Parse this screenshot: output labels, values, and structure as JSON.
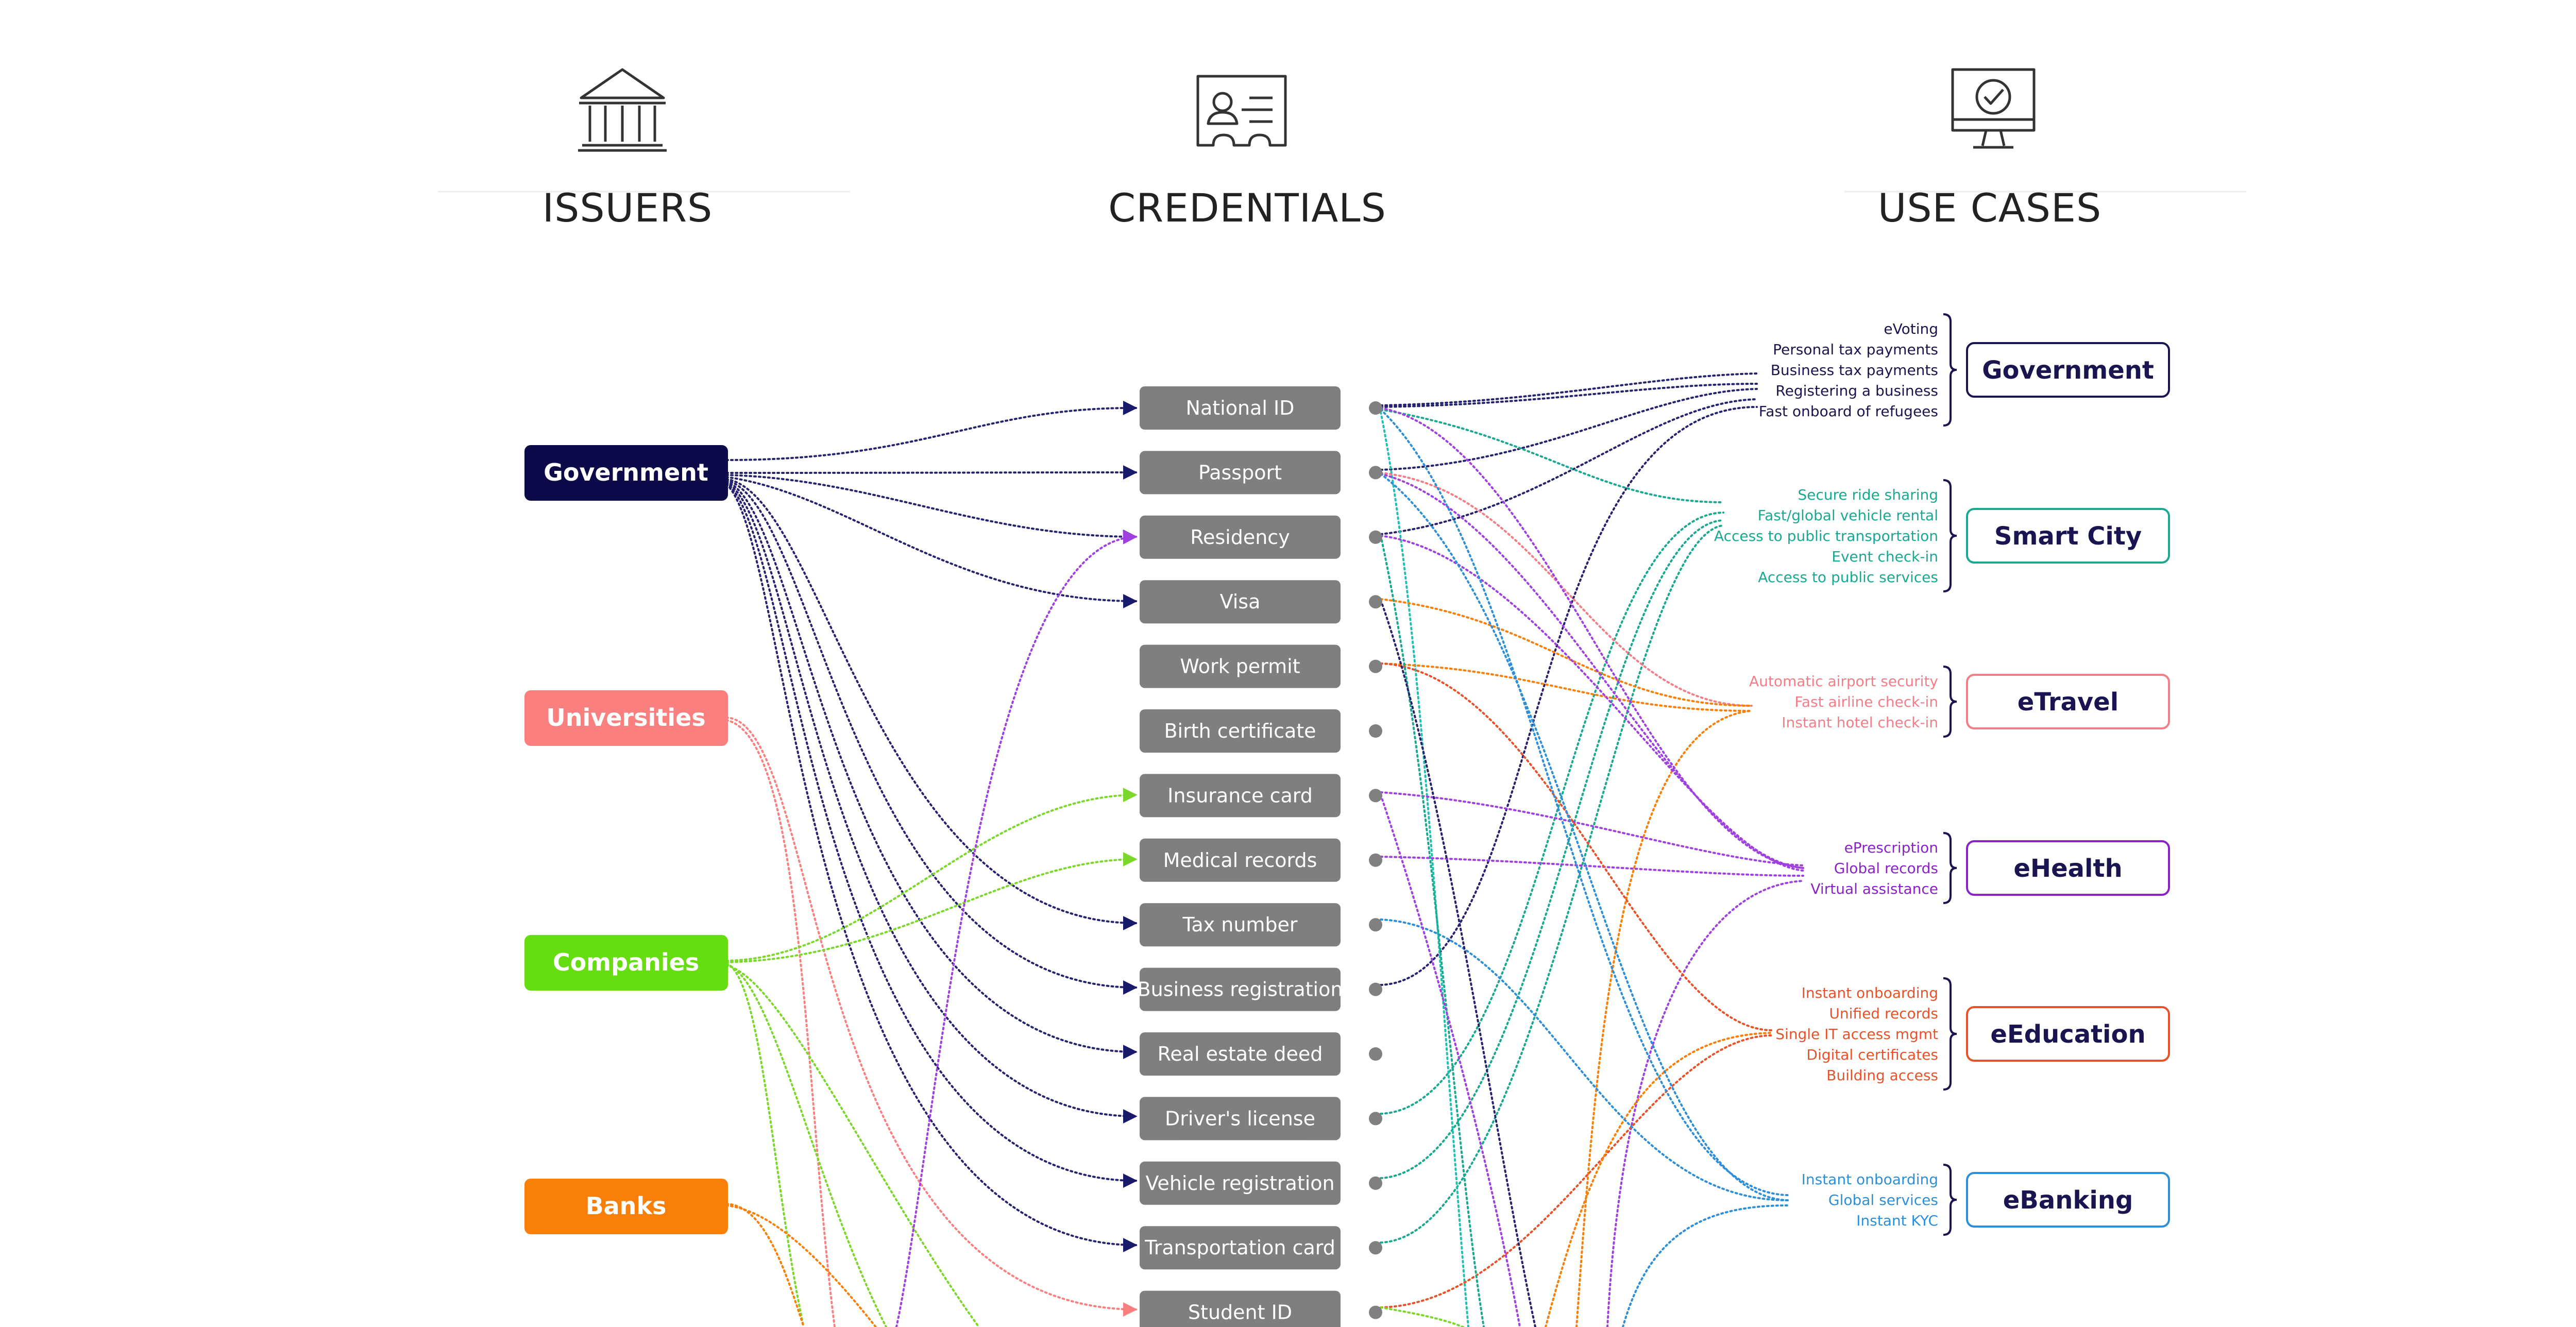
{
  "headers": {
    "issuers": "ISSUERS",
    "credentials": "CREDENTIALS",
    "use_cases": "USE CASES"
  },
  "header_icons": [
    "bank-building-icon",
    "id-card-icon",
    "monitor-checkmark-icon"
  ],
  "issuers": [
    {
      "label": "Government",
      "color": "#0d0a4a"
    },
    {
      "label": "Universities",
      "color": "#fa8080"
    },
    {
      "label": "Companies",
      "color": "#66dd11"
    },
    {
      "label": "Banks",
      "color": "#f77f0a"
    }
  ],
  "credentials": [
    "National ID",
    "Passport",
    "Residency",
    "Visa",
    "Work permit",
    "Birth certificate",
    "Insurance card",
    "Medical records",
    "Tax number",
    "Business registration",
    "Real estate deed",
    "Driver's license",
    "Vehicle registration",
    "Transportation card",
    "Student ID"
  ],
  "use_cases": [
    {
      "label": "Government",
      "color": "#1a1450",
      "items": [
        "eVoting",
        "Personal tax payments",
        "Business tax payments",
        "Registering a business",
        "Fast onboard of refugees"
      ]
    },
    {
      "label": "Smart City",
      "color": "#1aa890",
      "items": [
        "Secure ride sharing",
        "Fast/global vehicle rental",
        "Access to public transportation",
        "Event check-in",
        "Access to public services"
      ]
    },
    {
      "label": "eTravel",
      "color": "#f47d86",
      "items": [
        "Automatic airport security",
        "Fast airline check-in",
        "Instant hotel check-in"
      ]
    },
    {
      "label": "eHealth",
      "color": "#8a22c8",
      "items": [
        "ePrescription",
        "Global records",
        "Virtual assistance"
      ]
    },
    {
      "label": "eEducation",
      "color": "#e8522a",
      "items": [
        "Instant onboarding",
        "Unified records",
        "Single IT access mgmt",
        "Digital certificates",
        "Building access"
      ]
    },
    {
      "label": "eBanking",
      "color": "#2d8fd8",
      "items": [
        "Instant onboarding",
        "Global services",
        "Instant KYC"
      ]
    }
  ],
  "colors": {
    "credential_box": "#7f7f7f",
    "credential_dot": "#808080",
    "header_text": "#222222",
    "usecase_text": "#1a1450"
  }
}
